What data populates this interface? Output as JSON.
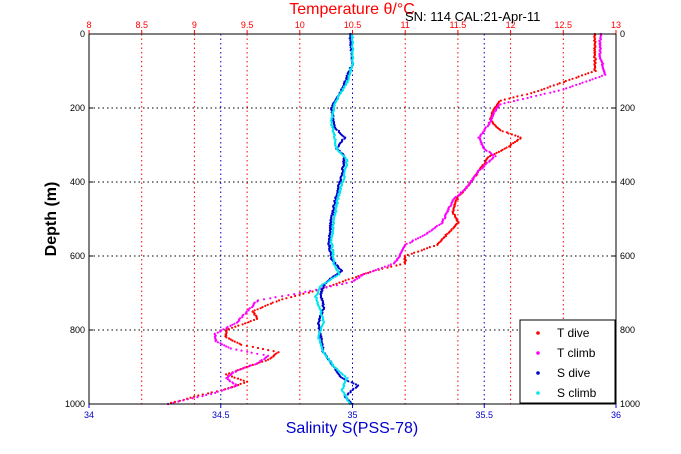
{
  "chart_data": {
    "type": "scatter",
    "top_title": "Temperature θ/°C",
    "annotation": "SN: 114  CAL:21-Apr-11",
    "xlabel": "Salinity S(PSS-78)",
    "ylabel": "Depth (m)",
    "grid": true,
    "legend_placement": "bottom-right",
    "y_reversed": true,
    "axes": {
      "salinity": {
        "range": [
          34,
          36
        ],
        "ticks": [
          "34",
          "34.5",
          "35",
          "35.5",
          "36"
        ],
        "tick_values": [
          34,
          34.5,
          35,
          35.5,
          36
        ]
      },
      "temperature": {
        "range": [
          8,
          13
        ],
        "ticks": [
          "8",
          "8.5",
          "9",
          "9.5",
          "10",
          "10.5",
          "11",
          "11.5",
          "12",
          "12.5",
          "13"
        ],
        "tick_values": [
          8,
          8.5,
          9,
          9.5,
          10,
          10.5,
          11,
          11.5,
          12,
          12.5,
          13
        ]
      },
      "depth": {
        "range": [
          0,
          1000
        ],
        "ticks": [
          "0",
          "200",
          "400",
          "600",
          "800",
          "1000"
        ],
        "tick_values": [
          0,
          200,
          400,
          600,
          800,
          1000
        ]
      }
    },
    "series": [
      {
        "name": "T dive",
        "color": "#ff0000",
        "axis": "temperature",
        "points": [
          [
            12.8,
            0
          ],
          [
            12.8,
            60
          ],
          [
            12.8,
            100
          ],
          [
            12.5,
            130
          ],
          [
            12.2,
            160
          ],
          [
            11.9,
            180
          ],
          [
            11.85,
            200
          ],
          [
            11.8,
            230
          ],
          [
            11.9,
            260
          ],
          [
            12.1,
            280
          ],
          [
            11.95,
            310
          ],
          [
            11.8,
            330
          ],
          [
            11.7,
            370
          ],
          [
            11.6,
            410
          ],
          [
            11.5,
            440
          ],
          [
            11.45,
            480
          ],
          [
            11.5,
            510
          ],
          [
            11.4,
            540
          ],
          [
            11.3,
            570
          ],
          [
            11.0,
            600
          ],
          [
            11.0,
            620
          ],
          [
            10.7,
            640
          ],
          [
            10.5,
            660
          ],
          [
            10.2,
            690
          ],
          [
            9.8,
            720
          ],
          [
            9.55,
            750
          ],
          [
            9.6,
            770
          ],
          [
            9.3,
            800
          ],
          [
            9.3,
            820
          ],
          [
            9.45,
            840
          ],
          [
            9.8,
            860
          ],
          [
            9.7,
            880
          ],
          [
            9.5,
            900
          ],
          [
            9.3,
            920
          ],
          [
            9.5,
            940
          ],
          [
            9.3,
            960
          ],
          [
            9.0,
            980
          ],
          [
            8.75,
            1000
          ]
        ]
      },
      {
        "name": "T climb",
        "color": "#ff00ff",
        "axis": "temperature",
        "points": [
          [
            12.85,
            0
          ],
          [
            12.85,
            60
          ],
          [
            12.9,
            110
          ],
          [
            12.5,
            150
          ],
          [
            12.2,
            170
          ],
          [
            11.9,
            190
          ],
          [
            11.85,
            210
          ],
          [
            11.8,
            240
          ],
          [
            11.7,
            280
          ],
          [
            11.75,
            310
          ],
          [
            11.85,
            330
          ],
          [
            11.7,
            370
          ],
          [
            11.6,
            410
          ],
          [
            11.45,
            450
          ],
          [
            11.4,
            480
          ],
          [
            11.35,
            510
          ],
          [
            11.2,
            540
          ],
          [
            11.0,
            570
          ],
          [
            10.95,
            600
          ],
          [
            10.9,
            620
          ],
          [
            10.6,
            650
          ],
          [
            10.5,
            670
          ],
          [
            10.0,
            700
          ],
          [
            9.6,
            720
          ],
          [
            9.5,
            750
          ],
          [
            9.4,
            780
          ],
          [
            9.2,
            810
          ],
          [
            9.2,
            830
          ],
          [
            9.35,
            850
          ],
          [
            9.7,
            870
          ],
          [
            9.6,
            890
          ],
          [
            9.4,
            910
          ],
          [
            9.3,
            930
          ],
          [
            9.4,
            950
          ],
          [
            9.2,
            970
          ],
          [
            8.9,
            990
          ],
          [
            8.75,
            1000
          ]
        ]
      },
      {
        "name": "S dive",
        "color": "#0000cc",
        "axis": "salinity",
        "points": [
          [
            34.99,
            0
          ],
          [
            35.0,
            80
          ],
          [
            34.96,
            150
          ],
          [
            34.92,
            200
          ],
          [
            34.93,
            250
          ],
          [
            34.97,
            280
          ],
          [
            34.94,
            310
          ],
          [
            34.97,
            330
          ],
          [
            34.96,
            380
          ],
          [
            34.94,
            430
          ],
          [
            34.92,
            500
          ],
          [
            34.91,
            560
          ],
          [
            34.92,
            610
          ],
          [
            34.96,
            640
          ],
          [
            34.9,
            670
          ],
          [
            34.88,
            700
          ],
          [
            34.89,
            740
          ],
          [
            34.87,
            780
          ],
          [
            34.88,
            820
          ],
          [
            34.89,
            860
          ],
          [
            34.93,
            900
          ],
          [
            34.96,
            930
          ],
          [
            35.02,
            950
          ],
          [
            34.97,
            980
          ],
          [
            35.0,
            1000
          ]
        ]
      },
      {
        "name": "S climb",
        "color": "#00e5ee",
        "axis": "salinity",
        "points": [
          [
            35.0,
            0
          ],
          [
            35.0,
            80
          ],
          [
            34.98,
            130
          ],
          [
            34.93,
            190
          ],
          [
            34.92,
            240
          ],
          [
            34.93,
            270
          ],
          [
            34.94,
            310
          ],
          [
            34.98,
            340
          ],
          [
            34.97,
            380
          ],
          [
            34.95,
            430
          ],
          [
            34.93,
            500
          ],
          [
            34.92,
            560
          ],
          [
            34.93,
            620
          ],
          [
            34.95,
            650
          ],
          [
            34.88,
            680
          ],
          [
            34.86,
            710
          ],
          [
            34.88,
            750
          ],
          [
            34.89,
            780
          ],
          [
            34.87,
            820
          ],
          [
            34.89,
            860
          ],
          [
            34.93,
            900
          ],
          [
            34.98,
            930
          ],
          [
            34.96,
            960
          ],
          [
            34.99,
            1000
          ]
        ]
      }
    ]
  }
}
